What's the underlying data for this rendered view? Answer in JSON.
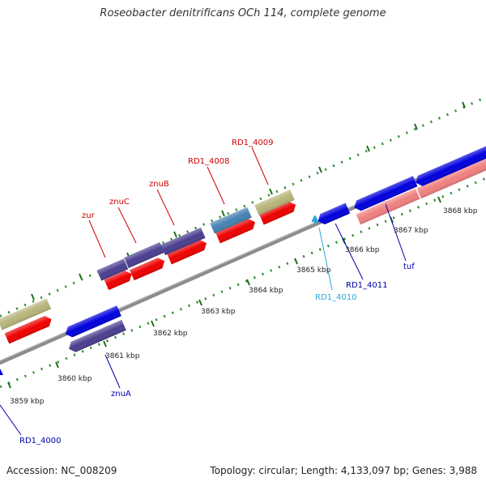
{
  "title": "Roseobacter denitrificans OCh 114, complete genome",
  "footer": {
    "accession": "Accession: NC_008209",
    "summary": "Topology: circular; Length: 4,133,097 bp; Genes: 3,988"
  },
  "colors": {
    "background": "#ffffff",
    "backbone": "#8c8c8c",
    "tick": "#2e8b2e",
    "forward_label": "#cc0000",
    "reverse_label": "#0000aa",
    "rna_label": "#2aa8d8",
    "gene_red": "#ee0000",
    "gene_pink": "#f08080",
    "gene_blue": "#0000dd",
    "gene_purple": "#4b3f8f",
    "gene_khaki": "#b8b47a",
    "gene_steel": "#4682b4",
    "gene_cyan": "#2aa8d8"
  },
  "positions": {
    "kbp_labels": [
      "3859 kbp",
      "3860 kbp",
      "3861 kbp",
      "3862 kbp",
      "3863 kbp",
      "3864 kbp",
      "3865 kbp",
      "3866 kbp",
      "3867 kbp",
      "3868 kbp"
    ]
  },
  "genes": {
    "labels": {
      "zur": "zur",
      "znuC": "znuC",
      "znuB": "znuB",
      "RD1_4008": "RD1_4008",
      "RD1_4009": "RD1_4009",
      "znuA": "znuA",
      "RD1_4000": "RD1_4000",
      "RD1_4010": "RD1_4010",
      "RD1_4011": "RD1_4011",
      "tuf": "tuf"
    }
  }
}
